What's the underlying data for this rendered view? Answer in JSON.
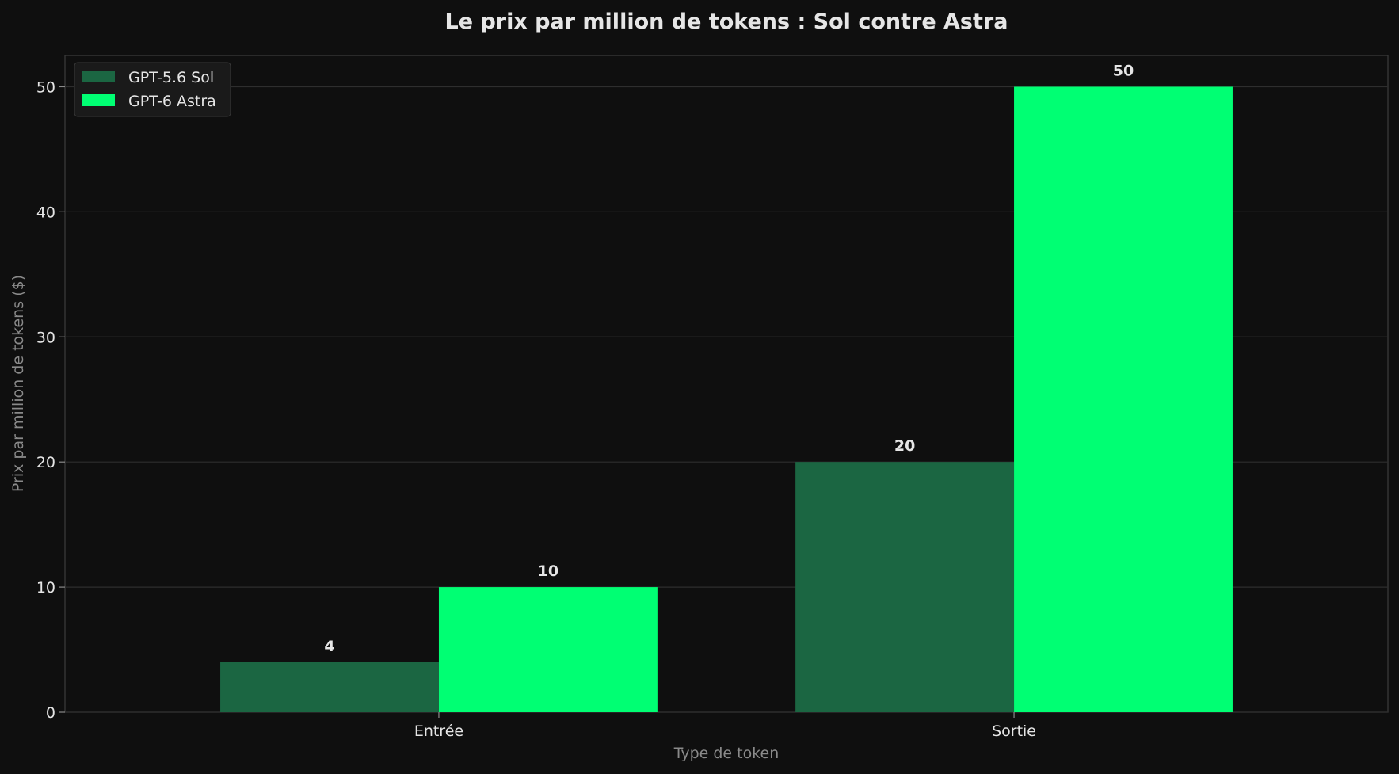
{
  "chart_data": {
    "type": "bar",
    "title": "Le prix par million de tokens : Sol contre Astra",
    "xlabel": "Type de token",
    "ylabel": "Prix par million de tokens ($)",
    "categories": [
      "Entrée",
      "Sortie"
    ],
    "series": [
      {
        "name": "GPT-5.6 Sol",
        "values": [
          4,
          20
        ],
        "color": "#1b6642"
      },
      {
        "name": "GPT-6 Astra",
        "values": [
          10,
          50
        ],
        "color": "#00ff73"
      }
    ],
    "ylim": [
      0,
      52.5
    ],
    "yticks": [
      0,
      10,
      20,
      30,
      40,
      50
    ],
    "grid": true,
    "legend": "top-left"
  },
  "colors": {
    "background": "#0f0f0f",
    "grid": "#2e2e2e",
    "axis": "#3a3a3a",
    "legend_bg": "#1a1a1a"
  }
}
